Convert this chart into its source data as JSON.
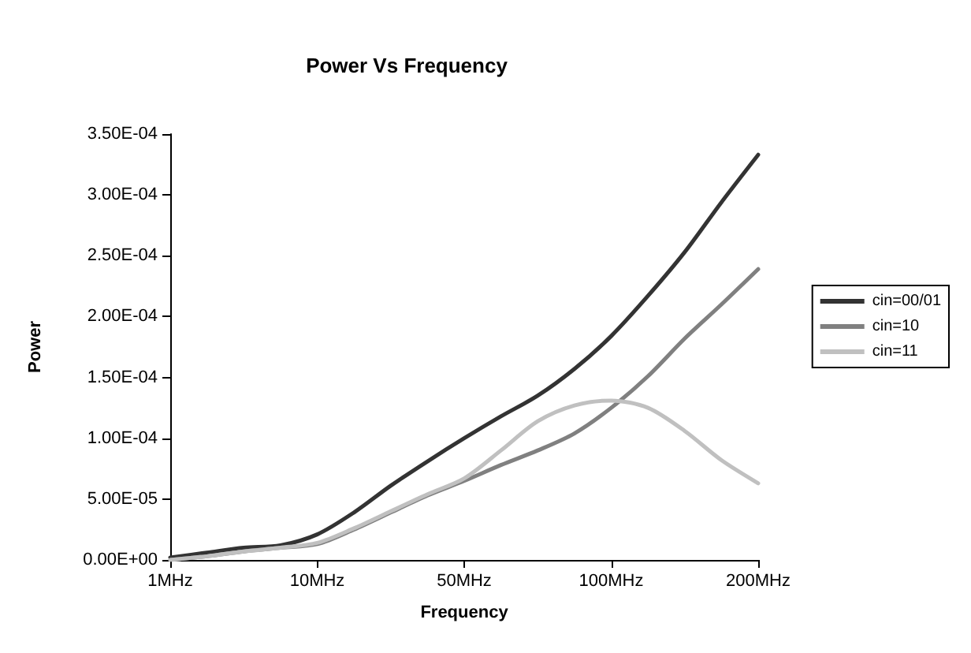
{
  "chart_data": {
    "type": "line",
    "title": "Power Vs Frequency",
    "xlabel": "Frequency",
    "ylabel": "Power",
    "categories": [
      "1MHz",
      null,
      null,
      null,
      "10MHz",
      null,
      null,
      null,
      "50MHz",
      null,
      null,
      null,
      "100MHz",
      null,
      null,
      null,
      "200MHz"
    ],
    "series": [
      {
        "name": "cin=00/01",
        "color": "#333333",
        "values": [
          2e-06,
          6e-06,
          1e-05,
          1.2e-05,
          2.1e-05,
          3.9e-05,
          6.1e-05,
          8.1e-05,
          0.0001,
          0.000118,
          0.000135,
          0.000157,
          0.000184,
          0.000217,
          0.000253,
          0.000294,
          0.000333
        ]
      },
      {
        "name": "cin=10",
        "color": "#808080",
        "values": [
          0,
          3e-06,
          7e-06,
          1e-05,
          1.3e-05,
          2.5e-05,
          3.9e-05,
          5.3e-05,
          6.5e-05,
          7.8e-05,
          9e-05,
          0.000104,
          0.000125,
          0.000151,
          0.000182,
          0.00021,
          0.000239
        ]
      },
      {
        "name": "cin=11",
        "color": "#c0c0c0",
        "values": [
          0,
          3e-06,
          7e-06,
          1e-05,
          1.4e-05,
          2.6e-05,
          4e-05,
          5.4e-05,
          6.7e-05,
          9e-05,
          0.000114,
          0.000127,
          0.000131,
          0.000125,
          0.000106,
          8.2e-05,
          6.3e-05
        ]
      }
    ],
    "ylim": [
      0,
      0.00035
    ],
    "yticks": [
      {
        "value": 0,
        "label": "0.00E+00"
      },
      {
        "value": 5e-05,
        "label": "5.00E-05"
      },
      {
        "value": 0.0001,
        "label": "1.00E-04"
      },
      {
        "value": 0.00015,
        "label": "1.50E-04"
      },
      {
        "value": 0.0002,
        "label": "2.00E-04"
      },
      {
        "value": 0.00025,
        "label": "2.50E-04"
      },
      {
        "value": 0.0003,
        "label": "3.00E-04"
      },
      {
        "value": 0.00035,
        "label": "3.50E-04"
      }
    ],
    "grid": false,
    "legend": "right",
    "marker": "none",
    "line_style": "solid"
  }
}
